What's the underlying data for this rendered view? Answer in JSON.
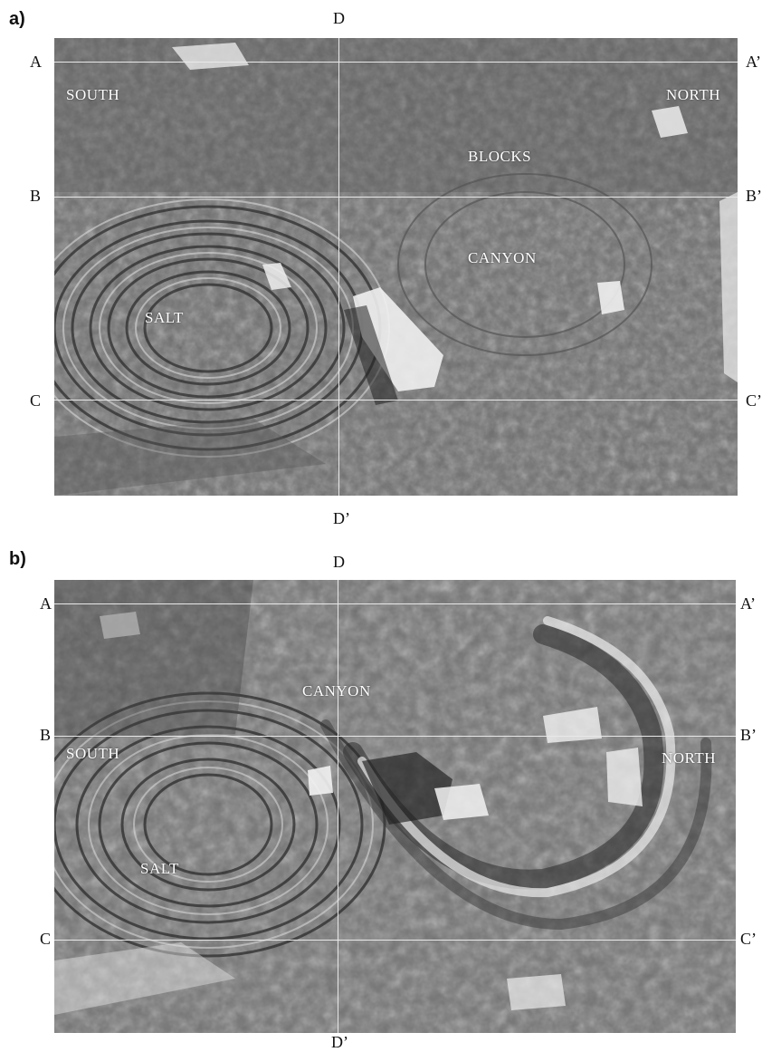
{
  "panel_a": {
    "letter": "a)",
    "markers": {
      "a": "A",
      "a_prime": "A’",
      "b": "B",
      "b_prime": "B’",
      "c": "C",
      "c_prime": "C’",
      "d": "D",
      "d_prime": "D’"
    },
    "regions": {
      "south": "SOUTH",
      "north": "NORTH",
      "blocks": "BLOCKS",
      "canyon": "CANYON",
      "salt": "SALT"
    }
  },
  "panel_b": {
    "letter": "b)",
    "markers": {
      "a": "A",
      "a_prime": "A’",
      "b": "B",
      "b_prime": "B’",
      "c": "C",
      "c_prime": "C’",
      "d": "D",
      "d_prime": "D’"
    },
    "regions": {
      "canyon": "CANYON",
      "south": "SOUTH",
      "north": "NORTH",
      "salt": "SALT"
    }
  },
  "colors": {
    "map_base": "#6d6d6d",
    "bright": "#f2f2f2",
    "dark": "#262626",
    "line": "#e8e8e8"
  }
}
